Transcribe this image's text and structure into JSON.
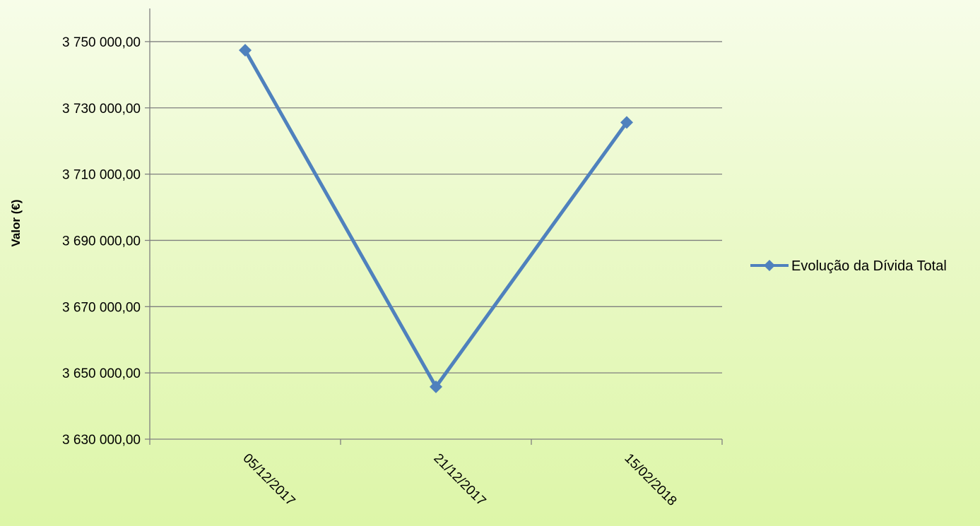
{
  "chart_data": {
    "type": "line",
    "title": "",
    "xlabel": "",
    "ylabel": "Valor (€)",
    "categories": [
      "05/12/2017",
      "21/12/2017",
      "15/02/2018"
    ],
    "series": [
      {
        "name": "Evolução da Dívida Total",
        "values": [
          3747400,
          3645800,
          3725600
        ]
      }
    ],
    "ylim": [
      3630000,
      3760000
    ],
    "yticks": [
      {
        "value": 3630000,
        "label": "3 630 000,00"
      },
      {
        "value": 3650000,
        "label": "3 650 000,00"
      },
      {
        "value": 3670000,
        "label": "3 670 000,00"
      },
      {
        "value": 3690000,
        "label": "3 690 000,00"
      },
      {
        "value": 3710000,
        "label": "3 710 000,00"
      },
      {
        "value": 3730000,
        "label": "3 730 000,00"
      },
      {
        "value": 3750000,
        "label": "3 750 000,00"
      }
    ],
    "grid": true,
    "legend": "right",
    "colors": {
      "series": "#4f81bd",
      "grid": "#7f7f7f",
      "axis": "#7f7f7f"
    }
  }
}
